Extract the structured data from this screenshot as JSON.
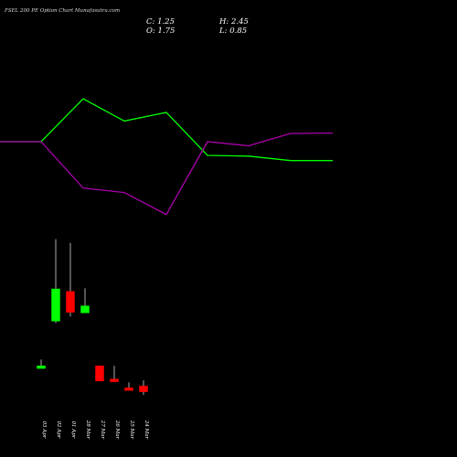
{
  "title": "FSEL 200 PE Option Chart Munafasutra.com",
  "ohlc": {
    "close": "C: 1.25",
    "open": "O: 1.75",
    "high": "H: 2.45",
    "low": "L: 0.85"
  },
  "colors": {
    "up": "#00ff00",
    "down": "#ff0000",
    "wick": "#aaaaaa",
    "green_line": "#00ff00",
    "magenta_line": "#aa00aa",
    "background": "#000000"
  },
  "chart_data": [
    {
      "type": "line",
      "series": [
        {
          "color": "#00ff00",
          "values": [
            0.0,
            0.0,
            1.25,
            0.6,
            0.85,
            -0.4,
            -0.42,
            -0.55,
            -0.55
          ]
        },
        {
          "color": "#aa00aa",
          "values": [
            0.0,
            0.0,
            -1.35,
            -1.48,
            -2.12,
            0.0,
            -0.12,
            0.24,
            0.25
          ]
        }
      ]
    },
    {
      "type": "candlestick",
      "categories": [
        "03 Apr",
        "02 Apr",
        "01 Apr",
        "28 Mar",
        "27 Mar",
        "26 Mar",
        "25 Mar",
        "24 Mar"
      ],
      "candles": [
        {
          "open": 0.65,
          "close": 0.85,
          "high": 1.35,
          "low": 0.65
        },
        {
          "open": 4.4,
          "close": 6.95,
          "high": 10.9,
          "low": 4.25
        },
        {
          "open": 6.75,
          "close": 5.1,
          "high": 10.6,
          "low": 4.75
        },
        {
          "open": 5.05,
          "close": 5.6,
          "high": 7.0,
          "low": 5.05
        },
        {
          "open": 0.85,
          "close": -0.35,
          "high": 0.85,
          "low": -0.35
        },
        {
          "open": -0.2,
          "close": -0.4,
          "high": 0.85,
          "low": -0.4
        },
        {
          "open": -0.9,
          "close": -1.1,
          "high": -0.45,
          "low": -1.1
        },
        {
          "open": -0.75,
          "close": -1.2,
          "high": -0.3,
          "low": -1.45
        }
      ]
    }
  ]
}
